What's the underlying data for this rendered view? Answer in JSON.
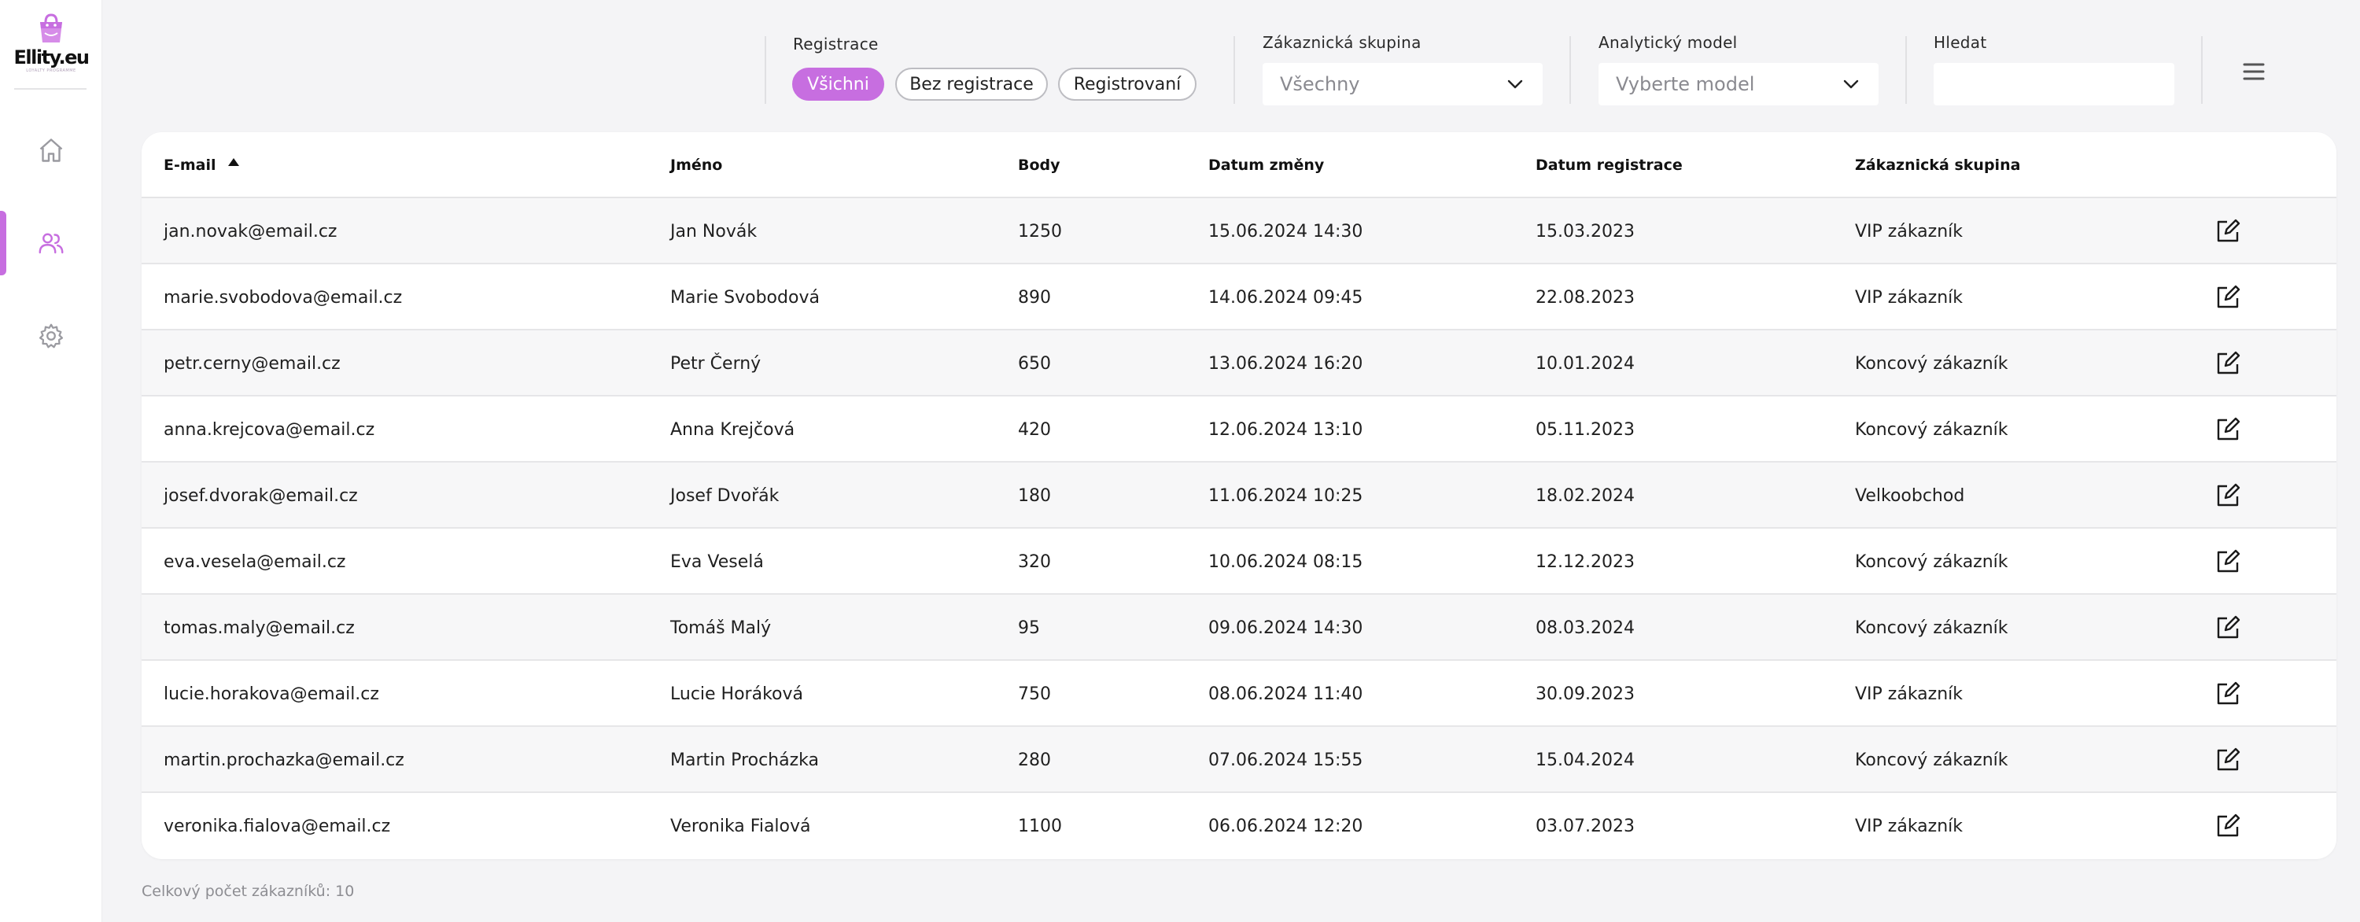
{
  "brand": {
    "name": "Ellity.eu",
    "tagline": "LOYALTY PROGRAMME",
    "accent": "#c76ee0"
  },
  "sidebar": {
    "items": [
      {
        "id": "home",
        "icon": "home-icon",
        "active": false
      },
      {
        "id": "customers",
        "icon": "users-icon",
        "active": true
      },
      {
        "id": "settings",
        "icon": "gear-icon",
        "active": false
      }
    ]
  },
  "filters": {
    "registration": {
      "label": "Registrace",
      "options": [
        "Všichni",
        "Bez registrace",
        "Registrovaní"
      ],
      "selected": "Všichni"
    },
    "customer_group": {
      "label": "Zákaznická skupina",
      "value": "Všechny"
    },
    "analytic_model": {
      "label": "Analytický model",
      "value": "Vyberte model"
    },
    "search": {
      "label": "Hledat",
      "value": "",
      "placeholder": ""
    }
  },
  "table": {
    "columns": [
      "E-mail",
      "Jméno",
      "Body",
      "Datum změny",
      "Datum registrace",
      "Zákaznická skupina"
    ],
    "sort": {
      "column": "E-mail",
      "direction": "asc"
    },
    "rows": [
      {
        "email": "jan.novak@email.cz",
        "name": "Jan Novák",
        "points": "1250",
        "changed": "15.06.2024 14:30",
        "registered": "15.03.2023",
        "group": "VIP zákazník"
      },
      {
        "email": "marie.svobodova@email.cz",
        "name": "Marie Svobodová",
        "points": "890",
        "changed": "14.06.2024 09:45",
        "registered": "22.08.2023",
        "group": "VIP zákazník"
      },
      {
        "email": "petr.cerny@email.cz",
        "name": "Petr Černý",
        "points": "650",
        "changed": "13.06.2024 16:20",
        "registered": "10.01.2024",
        "group": "Koncový zákazník"
      },
      {
        "email": "anna.krejcova@email.cz",
        "name": "Anna Krejčová",
        "points": "420",
        "changed": "12.06.2024 13:10",
        "registered": "05.11.2023",
        "group": "Koncový zákazník"
      },
      {
        "email": "josef.dvorak@email.cz",
        "name": "Josef Dvořák",
        "points": "180",
        "changed": "11.06.2024 10:25",
        "registered": "18.02.2024",
        "group": "Velkoobchod"
      },
      {
        "email": "eva.vesela@email.cz",
        "name": "Eva Veselá",
        "points": "320",
        "changed": "10.06.2024 08:15",
        "registered": "12.12.2023",
        "group": "Koncový zákazník"
      },
      {
        "email": "tomas.maly@email.cz",
        "name": "Tomáš Malý",
        "points": "95",
        "changed": "09.06.2024 14:30",
        "registered": "08.03.2024",
        "group": "Koncový zákazník"
      },
      {
        "email": "lucie.horakova@email.cz",
        "name": "Lucie Horáková",
        "points": "750",
        "changed": "08.06.2024 11:40",
        "registered": "30.09.2023",
        "group": "VIP zákazník"
      },
      {
        "email": "martin.prochazka@email.cz",
        "name": "Martin Procházka",
        "points": "280",
        "changed": "07.06.2024 15:55",
        "registered": "15.04.2024",
        "group": "Koncový zákazník"
      },
      {
        "email": "veronika.fialova@email.cz",
        "name": "Veronika Fialová",
        "points": "1100",
        "changed": "06.06.2024 12:20",
        "registered": "03.07.2023",
        "group": "VIP zákazník"
      }
    ],
    "row_action_icon": "edit-icon"
  },
  "footer": {
    "total_label": "Celkový počet zákazníků: 10"
  }
}
